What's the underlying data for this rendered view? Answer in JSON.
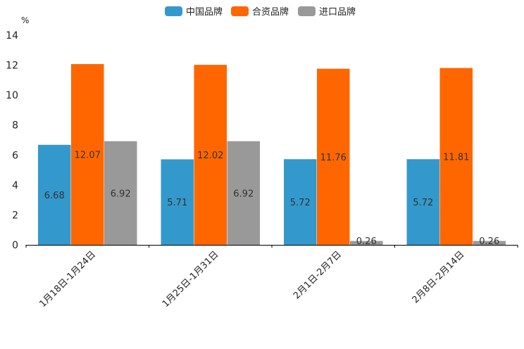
{
  "chart_data": {
    "type": "bar",
    "title": "",
    "unit": "%",
    "categories": [
      "1月18日-1月24日",
      "1月25日-1月31日",
      "2月1日-2月7日",
      "2月8日-2月14日"
    ],
    "series": [
      {
        "name": "中国品牌",
        "color": "#3399cc",
        "values": [
          6.68,
          5.71,
          5.72,
          5.72
        ],
        "labels": [
          "6.68",
          "5.71",
          "5.72",
          "5.72"
        ]
      },
      {
        "name": "合资品牌",
        "color": "#ff6600",
        "values": [
          12.07,
          12.02,
          11.76,
          11.81
        ],
        "labels": [
          "12.07",
          "12.02",
          "11.76",
          "11.81"
        ]
      },
      {
        "name": "进口品牌",
        "color": "#999999",
        "values": [
          6.92,
          6.92,
          0.26,
          0.26
        ],
        "labels": [
          "6.92",
          "6.92",
          "0.26",
          "0.26"
        ]
      }
    ],
    "ylim": [
      0,
      14
    ],
    "yticks": [
      "0",
      "2",
      "4",
      "6",
      "8",
      "10",
      "12",
      "14"
    ],
    "xlabel": "",
    "ylabel": "%",
    "legend_position": "top-center",
    "grid": false
  }
}
